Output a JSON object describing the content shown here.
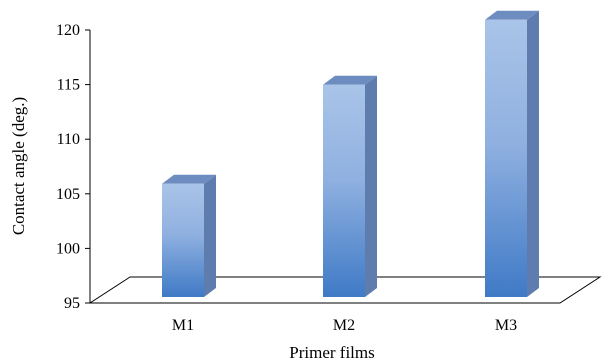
{
  "chart_data": {
    "type": "bar",
    "categories": [
      "M1",
      "M2",
      "M3"
    ],
    "series": [
      {
        "values": [
          105.3,
          114.3,
          120.2
        ]
      }
    ],
    "xlabel": "Primer films",
    "ylabel": "Contact angle (deg.)",
    "ylim": [
      95,
      120
    ],
    "yticks": [
      95,
      100,
      105,
      110,
      115,
      120
    ],
    "grid": false,
    "legend": "none",
    "style": "3d",
    "colors": {
      "bar_front_top": "#a9c4e8",
      "bar_front_bottom": "#3f7ac6",
      "bar_side": "#5e7dae",
      "bar_top": "#6d8cbf",
      "axis": "#000000"
    }
  }
}
